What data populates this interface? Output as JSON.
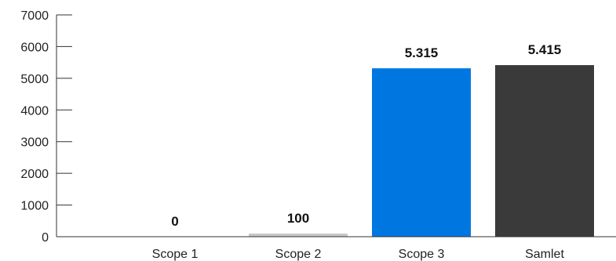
{
  "chart_data": {
    "type": "bar",
    "title": "",
    "xlabel": "",
    "ylabel": "",
    "categories": [
      "Scope 1",
      "Scope 2",
      "Scope 3",
      "Samlet"
    ],
    "values": [
      0,
      100,
      5315,
      5415
    ],
    "data_labels": [
      "0",
      "100",
      "5.315",
      "5.415"
    ],
    "bar_colors": [
      "#c8c8c8",
      "#c8c8c8",
      "#0077e0",
      "#3a3a3a"
    ],
    "ylim": [
      0,
      7000
    ],
    "yticks": [
      0,
      1000,
      2000,
      3000,
      4000,
      5000,
      6000,
      7000
    ],
    "grid": false,
    "legend": "none"
  }
}
